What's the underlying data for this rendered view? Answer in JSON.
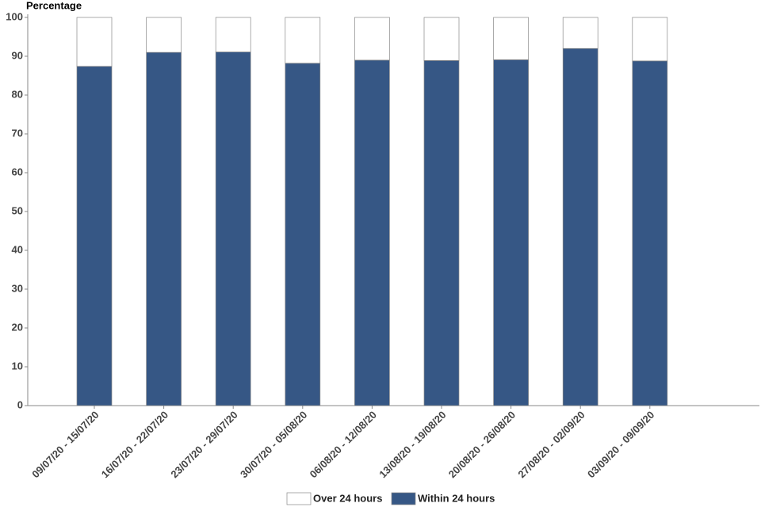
{
  "chart_data": {
    "type": "stacked_bar",
    "y_label": "Percentage",
    "categories": [
      "09/07/20 - 15/07/20",
      "16/07/20 - 22/07/20",
      "23/07/20 - 29/07/20",
      "30/07/20 - 05/08/20",
      "06/08/20 - 12/08/20",
      "13/08/20 - 19/08/20",
      "20/08/20 - 26/08/20",
      "27/08/20 - 02/09/20",
      "03/09/20 - 09/09/20"
    ],
    "series": [
      {
        "name": "Within 24 hours",
        "color": "#365785",
        "values": [
          87.4,
          91.0,
          91.1,
          88.2,
          89.0,
          88.9,
          89.1,
          92.0,
          88.8
        ]
      },
      {
        "name": "Over 24 hours",
        "color": "#ffffff",
        "values": [
          12.6,
          9.0,
          8.9,
          11.8,
          11.0,
          11.1,
          10.9,
          8.0,
          11.2
        ]
      }
    ],
    "ylim": [
      0,
      100
    ],
    "yticks": [
      0,
      10,
      20,
      30,
      40,
      50,
      60,
      70,
      80,
      90,
      100
    ]
  }
}
